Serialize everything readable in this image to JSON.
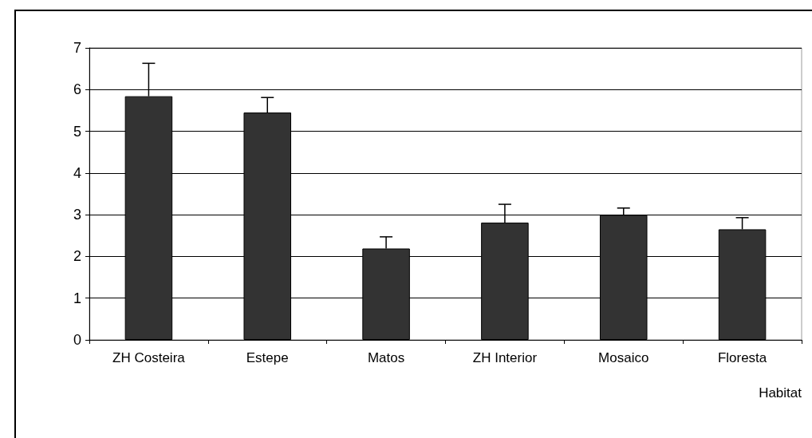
{
  "chart_data": {
    "type": "bar",
    "xlabel": "Habitat",
    "categories": [
      "ZH Costeira",
      "Estepe",
      "Matos",
      "ZH Interior",
      "Mosaico",
      "Floresta"
    ],
    "values": [
      5.84,
      5.45,
      2.19,
      2.81,
      2.99,
      2.65
    ],
    "errors": [
      [
        5.84,
        6.63
      ],
      [
        5.45,
        5.81
      ],
      [
        2.19,
        2.47
      ],
      [
        2.81,
        3.25
      ],
      [
        2.99,
        3.16
      ],
      [
        2.65,
        2.93
      ]
    ],
    "color": "#333333",
    "ylim": [
      0,
      7
    ],
    "yticks": [
      0,
      1,
      2,
      3,
      4,
      5,
      6,
      7
    ],
    "grid": "y"
  }
}
